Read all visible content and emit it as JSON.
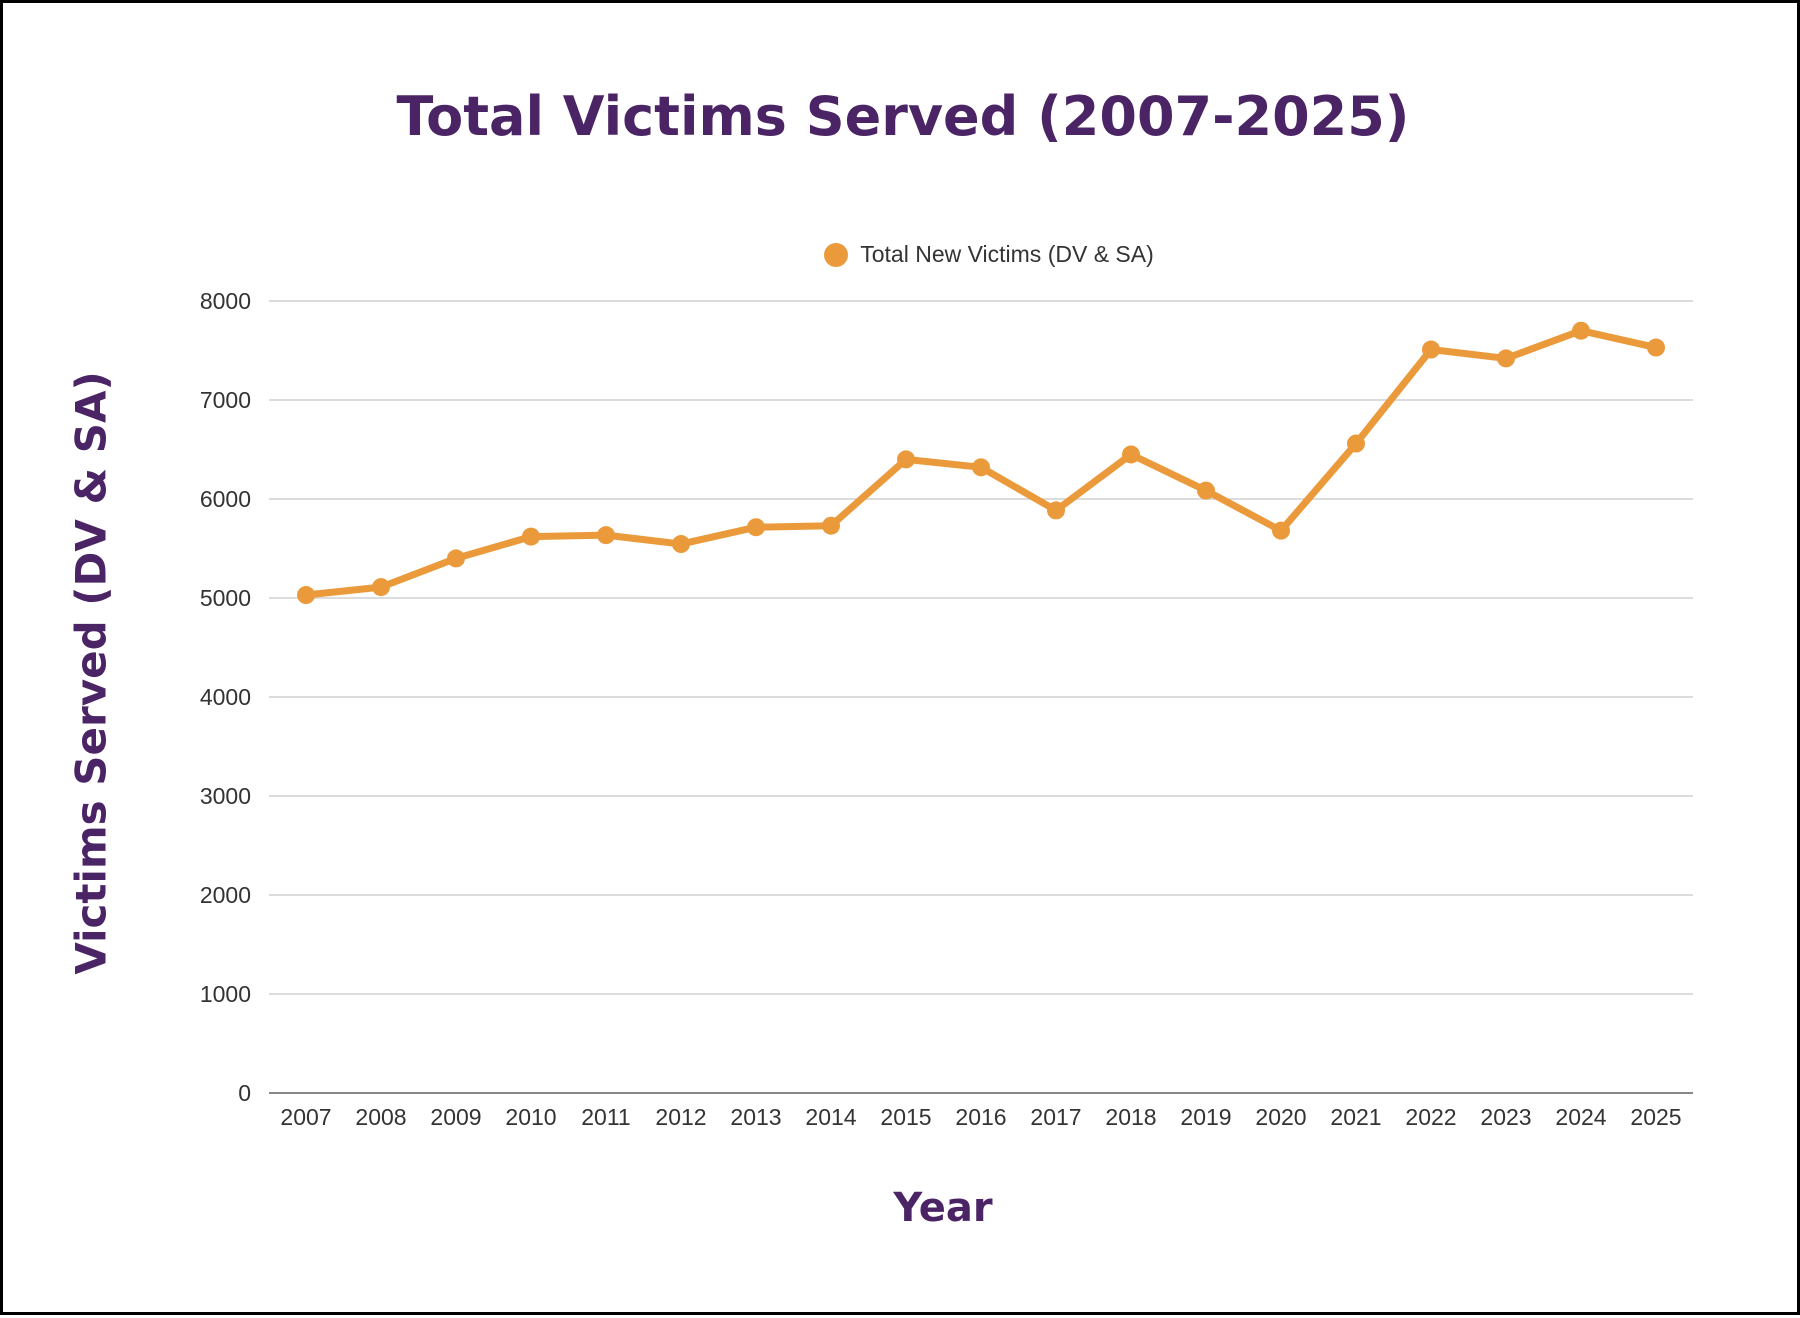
{
  "chart_data": {
    "type": "line",
    "title": "Total Victims Served (2007-2025)",
    "xlabel": "Year",
    "ylabel": "Victims Served (DV & SA)",
    "x": [
      "2007",
      "2008",
      "2009",
      "2010",
      "2011",
      "2012",
      "2013",
      "2014",
      "2015",
      "2016",
      "2017",
      "2018",
      "2019",
      "2020",
      "2021",
      "2022",
      "2023",
      "2024",
      "2025"
    ],
    "series": [
      {
        "name": "Total New Victims (DV & SA)",
        "color": "#eb9a3b",
        "values": [
          5030,
          5110,
          5400,
          5620,
          5635,
          5545,
          5715,
          5730,
          6400,
          6320,
          5885,
          6450,
          6085,
          5680,
          6560,
          7510,
          7420,
          7700,
          7530
        ]
      }
    ],
    "ylim": [
      0,
      8000
    ],
    "yticks": [
      0,
      1000,
      2000,
      3000,
      4000,
      5000,
      6000,
      7000,
      8000
    ],
    "grid": true,
    "legend": "top-center"
  },
  "colors": {
    "title": "#4b2466",
    "grid": "#d0d0d0",
    "axis": "#888888"
  }
}
